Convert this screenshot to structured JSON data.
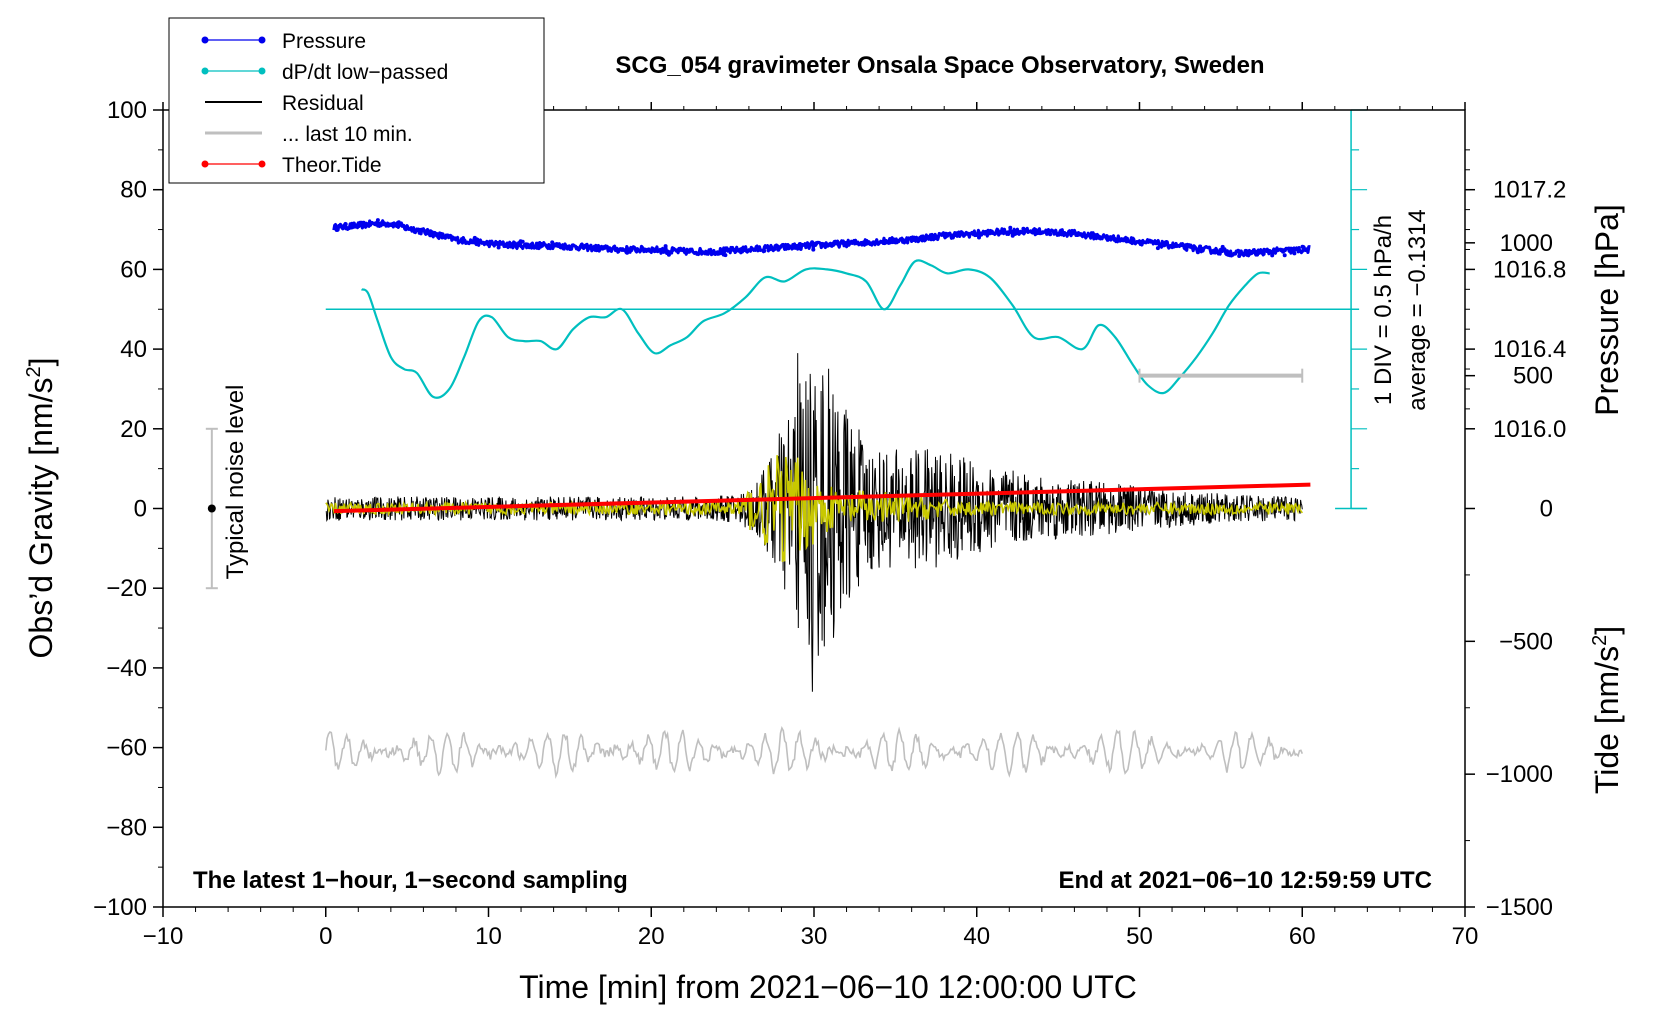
{
  "chart_data": {
    "type": "line",
    "title": "SCG_054 gravimeter Onsala Space Observatory, Sweden",
    "xlabel": "Time [min] from 2021−06−10 12:00:00 UTC",
    "ylabel_main": "Obs’d Gravity [nm/s",
    "ylabel_pressure": "Pressure [hPa]",
    "ylabel_tide": "Tide [nm/s",
    "sup2": "2",
    "close_bracket": "]",
    "xlim": [
      -10,
      70
    ],
    "ylim_gravity": [
      -100,
      100
    ],
    "ylim_tide": [
      -1500,
      1500
    ],
    "x_ticks": [
      "−10",
      "0",
      "10",
      "20",
      "30",
      "40",
      "50",
      "60",
      "70"
    ],
    "x_tick_values": [
      -10,
      0,
      10,
      20,
      30,
      40,
      50,
      60,
      70
    ],
    "y_ticks": [
      "100",
      "80",
      "60",
      "40",
      "20",
      "0",
      "−20",
      "−40",
      "−60",
      "−80",
      "−100"
    ],
    "y_tick_values": [
      100,
      80,
      60,
      40,
      20,
      0,
      -20,
      -40,
      -60,
      -80,
      -100
    ],
    "pressure_ticks": [
      "1017.2",
      "1016.8",
      "1016.4",
      "1016.0"
    ],
    "pressure_tick_values": [
      1017.2,
      1016.8,
      1016.4,
      1016.0
    ],
    "tide_ticks": [
      "1000",
      "500",
      "0",
      "−500",
      "−1000",
      "−1500"
    ],
    "tide_tick_values": [
      1000,
      500,
      0,
      -500,
      -1000,
      -1500
    ],
    "legend": [
      {
        "label": "Pressure",
        "color": "#0000ee",
        "marker": true
      },
      {
        "label": "dP/dt low−passed",
        "color": "#00bfbf",
        "marker": true
      },
      {
        "label": "Residual",
        "color": "#000000",
        "marker": false
      },
      {
        "label": "... last 10 min.",
        "color": "#bfbfbf",
        "marker": false
      },
      {
        "label": "Theor.Tide",
        "color": "#ff0000",
        "marker": true
      }
    ],
    "pressure_series": {
      "name": "Pressure",
      "color": "#0000ee",
      "t": [
        0.5,
        2,
        3,
        4,
        5,
        6,
        7,
        8,
        9,
        10,
        12,
        14,
        16,
        18,
        20,
        22,
        24,
        26,
        28,
        30,
        32,
        34,
        36,
        38,
        40,
        42,
        44,
        46,
        48,
        50,
        52,
        54,
        56,
        58,
        60.5
      ],
      "values": [
        70.5,
        71,
        71.5,
        71.5,
        70.5,
        69.5,
        68.5,
        67.5,
        67,
        66.5,
        66,
        66,
        65.5,
        65,
        65,
        64.5,
        64.5,
        65,
        65.5,
        66,
        66.5,
        67,
        67.5,
        68.5,
        69,
        69.5,
        69.5,
        69,
        68,
        67,
        66,
        65,
        64,
        64.5,
        65
      ]
    },
    "dpdt_series": {
      "name": "dP/dt low−passed",
      "color": "#00bfbf",
      "average_line_y": 50,
      "t": [
        2.2,
        2.6,
        3.2,
        4,
        4.8,
        5.6,
        6.6,
        7.6,
        8.5,
        9.4,
        10.2,
        11.2,
        12.2,
        13.2,
        14.2,
        15.2,
        16.2,
        17.2,
        18.2,
        19.2,
        20.2,
        21.2,
        22.2,
        23.2,
        24.5,
        25.8,
        27,
        28.2,
        29.5,
        30.8,
        32,
        33.2,
        34.3,
        35.3,
        36.2,
        37.2,
        38.2,
        39.5,
        40.8,
        42.2,
        43.5,
        45,
        46.5,
        47.5,
        48.5,
        49.6,
        50.5,
        51.5,
        52.5,
        53.5,
        54.5,
        55.5,
        56.5,
        57.3,
        58
      ],
      "values": [
        55,
        54,
        47,
        38,
        35,
        34,
        28,
        30,
        38,
        47,
        48,
        43,
        42,
        42,
        40,
        45,
        48,
        48,
        50,
        44,
        39,
        41,
        43,
        47,
        49,
        53,
        58,
        57,
        60,
        60,
        59,
        57,
        50,
        56,
        62,
        61,
        59,
        60,
        58,
        51,
        43,
        43,
        40,
        46,
        43,
        36,
        31,
        29,
        33,
        38,
        44,
        51,
        56,
        59,
        59
      ]
    },
    "residual_series": {
      "name": "Residual",
      "color": "#000000",
      "t_range": [
        0,
        60
      ],
      "burst_center_min": 30,
      "peak_positive": 39,
      "peak_negative": -46,
      "baseline_noise": 3
    },
    "filtered_overlay": {
      "color": "#c8c800",
      "t_range": [
        0,
        60
      ],
      "peak": 12
    },
    "last10_series": {
      "name": "... last 10 min.",
      "color": "#bfbfbf",
      "center_y": -61,
      "amplitude": 5,
      "t_range": [
        0,
        60
      ],
      "span_bar_t": [
        50,
        60
      ],
      "span_bar_tide": 500
    },
    "tide_series": {
      "name": "Theor.Tide",
      "color": "#ff0000",
      "t": [
        0.5,
        60.5
      ],
      "values": [
        -10,
        90
      ]
    },
    "noise_level": {
      "label": "Typical noise level",
      "x": -7,
      "range": [
        -20,
        20
      ]
    },
    "pressure_scale": {
      "div_label": "1 DIV = 0.5 hPa/h",
      "average_label": "average = −0.1314",
      "x": 63
    },
    "footer_left": "The latest 1−hour, 1−second sampling",
    "footer_right": "End at 2021−06−10 12:59:59 UTC"
  }
}
